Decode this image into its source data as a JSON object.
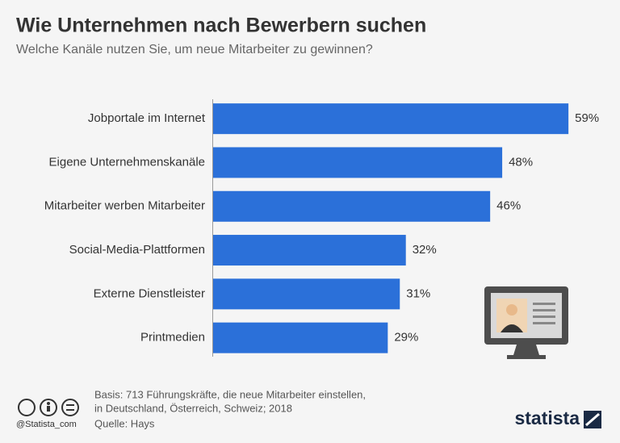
{
  "chart_data": {
    "type": "hbar",
    "title": "Wie Unternehmen nach Bewerbern suchen",
    "subtitle": "Welche Kanäle nutzen Sie, um neue Mitarbeiter zu gewinnen?",
    "categories": [
      "Jobportale im Internet",
      "Eigene Unternehmenskanäle",
      "Mitarbeiter werben Mitarbeiter",
      "Social-Media-Plattformen",
      "Externe Dienstleister",
      "Printmedien"
    ],
    "values": [
      59,
      48,
      46,
      32,
      31,
      29
    ],
    "value_labels": [
      "59%",
      "48%",
      "46%",
      "32%",
      "31%",
      "29%"
    ],
    "color": "#2b70d9"
  },
  "footer": {
    "basis": [
      "Basis: 713 Führungskräfte, die neue Mitarbeiter einstellen,",
      "in Deutschland, Österreich, Schweiz; 2018"
    ],
    "source": "Quelle: Hays",
    "handle": "@Statista_com",
    "brand": "statista"
  }
}
